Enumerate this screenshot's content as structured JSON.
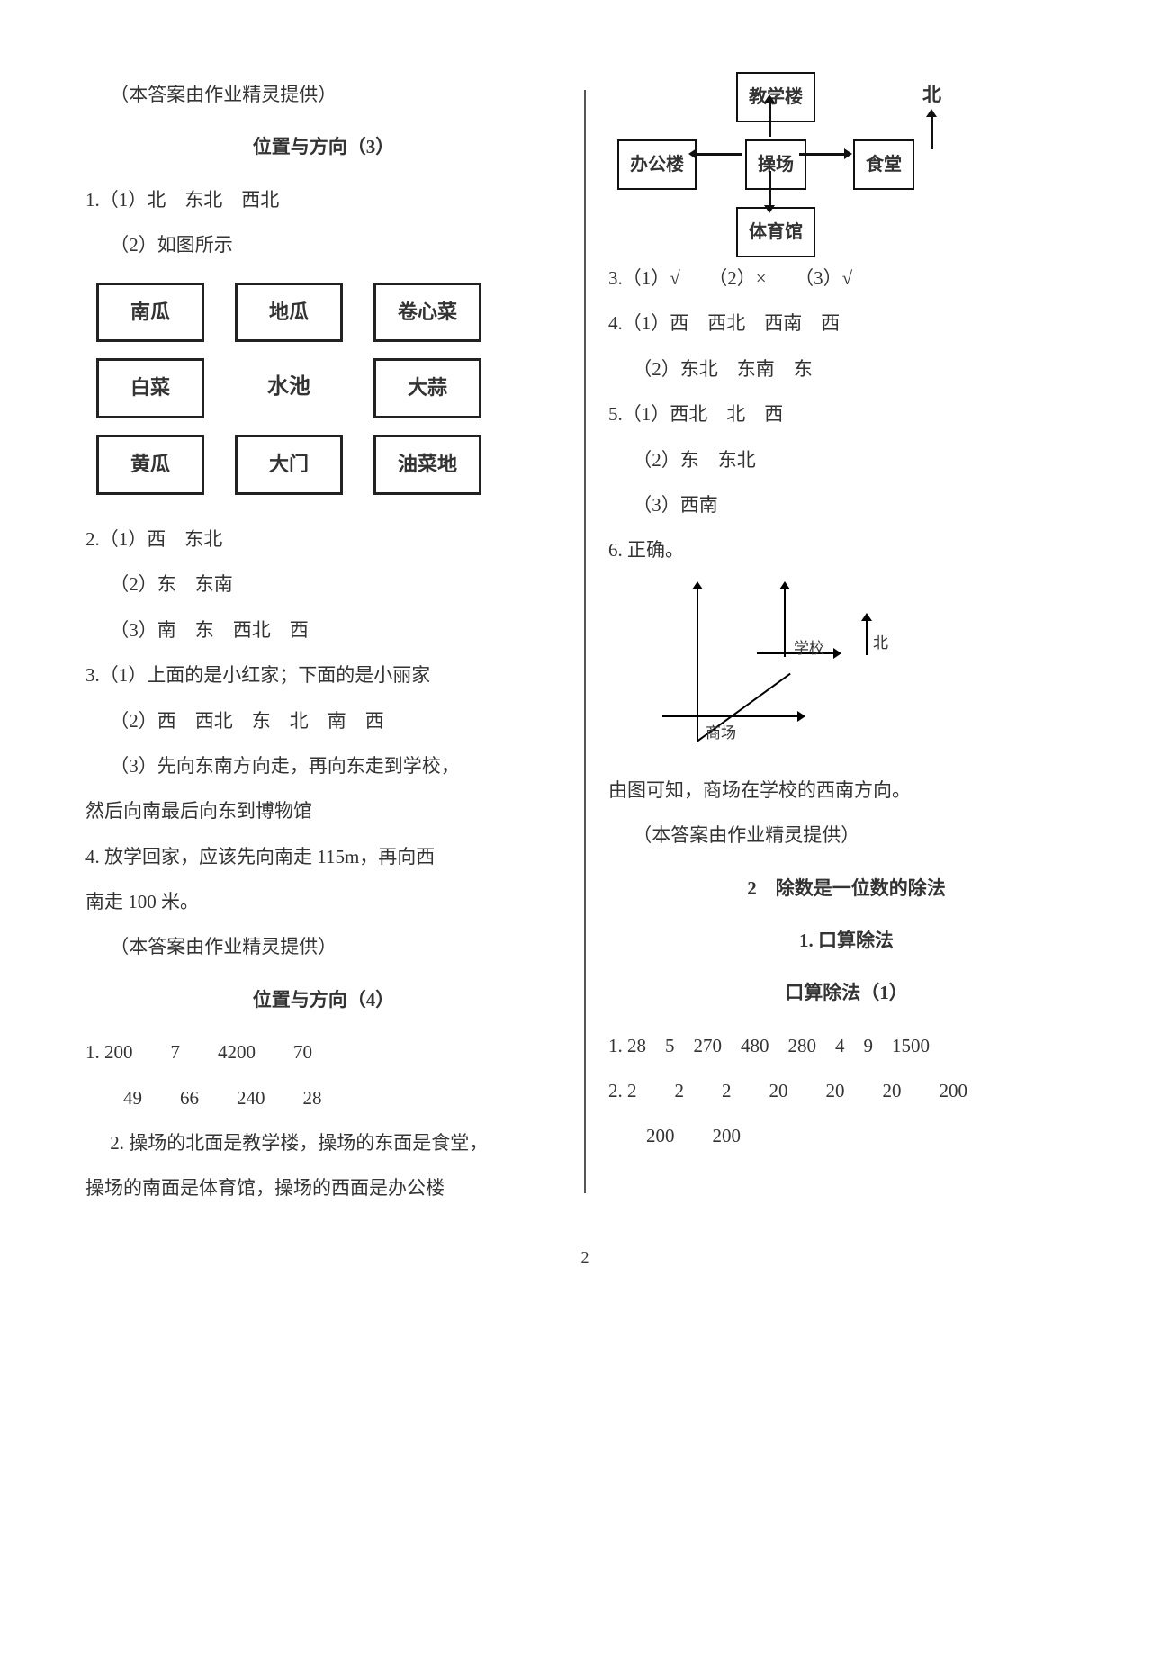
{
  "left": {
    "note1": "（本答案由作业精灵提供）",
    "sectionTitle1": "位置与方向（3）",
    "q1_1": "1.（1）北　东北　西北",
    "q1_2": "（2）如图所示",
    "veg_grid": {
      "cells": [
        "南瓜",
        "地瓜",
        "卷心菜",
        "白菜",
        "水池",
        "大蒜",
        "黄瓜",
        "大门",
        "油菜地"
      ],
      "unboxed_index": 4
    },
    "q2_1": "2.（1）西　东北",
    "q2_2": "（2）东　东南",
    "q2_3": "（3）南　东　西北　西",
    "q3_1": "3.（1）上面的是小红家；下面的是小丽家",
    "q3_2": "（2）西　西北　东　北　南　西",
    "q3_3a": "（3）先向东南方向走，再向东走到学校，",
    "q3_3b": "然后向南最后向东到博物馆",
    "q4a": "4. 放学回家，应该先向南走 115m，再向西",
    "q4b": "南走 100 米。",
    "note2": "（本答案由作业精灵提供）",
    "sectionTitle2": "位置与方向（4）",
    "q_set2_1a": "1. 200　　7　　4200　　70",
    "q_set2_1b": "49　　66　　240　　28",
    "q_set2_2a": "2. 操场的北面是教学楼，操场的东面是食堂，",
    "q_set2_2b": "操场的南面是体育馆，操场的西面是办公楼"
  },
  "right": {
    "diagram": {
      "top": "教学楼",
      "left": "办公楼",
      "center": "操场",
      "right_": "食堂",
      "bottom": "体育馆",
      "north": "北"
    },
    "q3": "3.（1）√　　（2）×　　（3）√",
    "q4_1": "4.（1）西　西北　西南　西",
    "q4_2": "（2）东北　东南　东",
    "q5_1": "5.（1）西北　北　西",
    "q5_2": "（2）东　东北",
    "q5_3": "（3）西南",
    "q6": "6. 正确。",
    "axis": {
      "school": "学校",
      "mall": "商场",
      "north": "北"
    },
    "q6_text": "由图可知，商场在学校的西南方向。",
    "note": "（本答案由作业精灵提供）",
    "chapter": "2　除数是一位数的除法",
    "sub1": "1. 口算除法",
    "sub2": "口算除法（1）",
    "r1": "1. 28　5　270　480　280　4　9　1500",
    "r2": "2. 2　　2　　2　　20　　20　　20　　200",
    "r3": "200　　200"
  },
  "pageNumber": "2"
}
